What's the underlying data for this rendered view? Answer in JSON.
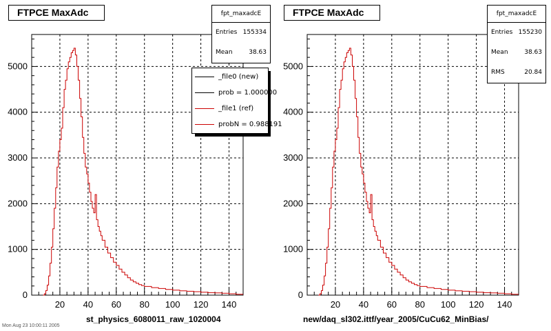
{
  "panels": [
    {
      "title": "FTPCE MaxAdc",
      "stats": {
        "name": "fpt_maxadcE",
        "rows": [
          {
            "label": "Entries",
            "value": "155334"
          },
          {
            "label": "Mean",
            "value": "38.63"
          }
        ]
      },
      "legend": [
        {
          "label": "_file0 (new)",
          "color": "#000000"
        },
        {
          "label": "prob = 1.000000",
          "color": "#000000"
        },
        {
          "label": "_file1 (ref)",
          "color": "#cc0000"
        },
        {
          "label": "probN = 0.988191",
          "color": "#cc0000"
        }
      ],
      "xcaption": "st_physics_6080011_raw_1020004",
      "footnote": "Mon Aug 23 10:00:11 2005"
    },
    {
      "title": "FTPCE MaxAdc",
      "stats": {
        "name": "fpt_maxadcE",
        "rows": [
          {
            "label": "Entries",
            "value": "155230"
          },
          {
            "label": "Mean",
            "value": "38.63"
          },
          {
            "label": "RMS",
            "value": "20.84"
          }
        ]
      },
      "xcaption": "new/daq_sl302.ittf/year_2005/CuCu62_MinBias/"
    }
  ],
  "chart_data": [
    {
      "type": "histogram",
      "title": "FTPCE MaxAdc",
      "xlabel": "st_physics_6080011_raw_1020004",
      "xlim": [
        0,
        150
      ],
      "ylim": [
        0,
        5700
      ],
      "xticks": [
        20,
        40,
        60,
        80,
        100,
        120,
        140
      ],
      "yticks": [
        0,
        1000,
        2000,
        3000,
        4000,
        5000
      ],
      "grid": true,
      "series": [
        {
          "name": "_file0 (new)",
          "color": "#000000"
        },
        {
          "name": "_file1 (ref)",
          "color": "#cc0000"
        }
      ],
      "x": [
        8,
        9,
        10,
        11,
        12,
        13,
        14,
        15,
        16,
        17,
        18,
        19,
        20,
        21,
        22,
        23,
        24,
        25,
        26,
        27,
        28,
        29,
        30,
        31,
        32,
        33,
        34,
        35,
        36,
        37,
        38,
        39,
        40,
        41,
        42,
        43,
        44,
        45,
        46,
        47,
        48,
        49,
        50,
        52,
        54,
        56,
        58,
        60,
        62,
        64,
        66,
        68,
        70,
        72,
        74,
        76,
        78,
        80,
        85,
        90,
        95,
        100,
        105,
        110,
        115,
        120,
        125,
        130,
        135,
        140,
        145,
        150
      ],
      "values": [
        0,
        30,
        100,
        220,
        420,
        700,
        1050,
        1450,
        1900,
        2350,
        2800,
        3150,
        3400,
        3650,
        4100,
        4500,
        4700,
        4950,
        5100,
        5200,
        5300,
        5350,
        5400,
        5250,
        5000,
        4700,
        4300,
        3900,
        3450,
        3100,
        2800,
        2650,
        2450,
        2250,
        2050,
        1900,
        1800,
        2200,
        1650,
        1500,
        1400,
        1300,
        1200,
        1050,
        920,
        820,
        720,
        650,
        570,
        500,
        440,
        380,
        330,
        290,
        260,
        230,
        210,
        190,
        165,
        145,
        125,
        110,
        95,
        85,
        75,
        65,
        55,
        50,
        40,
        30,
        20,
        10
      ]
    },
    {
      "type": "histogram",
      "title": "FTPCE MaxAdc",
      "xlabel": "new/daq_sl302.ittf/year_2005/CuCu62_MinBias/",
      "xlim": [
        0,
        150
      ],
      "ylim": [
        0,
        5700
      ],
      "xticks": [
        20,
        40,
        60,
        80,
        100,
        120,
        140
      ],
      "yticks": [
        0,
        1000,
        2000,
        3000,
        4000,
        5000
      ],
      "grid": true,
      "series": [
        {
          "color": "#cc0000"
        }
      ],
      "x": [
        8,
        9,
        10,
        11,
        12,
        13,
        14,
        15,
        16,
        17,
        18,
        19,
        20,
        21,
        22,
        23,
        24,
        25,
        26,
        27,
        28,
        29,
        30,
        31,
        32,
        33,
        34,
        35,
        36,
        37,
        38,
        39,
        40,
        41,
        42,
        43,
        44,
        45,
        46,
        47,
        48,
        49,
        50,
        52,
        54,
        56,
        58,
        60,
        62,
        64,
        66,
        68,
        70,
        72,
        74,
        76,
        78,
        80,
        85,
        90,
        95,
        100,
        105,
        110,
        115,
        120,
        125,
        130,
        135,
        140,
        145,
        150
      ],
      "values": [
        0,
        30,
        100,
        220,
        420,
        700,
        1050,
        1450,
        1900,
        2350,
        2800,
        3150,
        3400,
        3650,
        4100,
        4500,
        4700,
        4950,
        5100,
        5200,
        5300,
        5350,
        5400,
        5250,
        5000,
        4700,
        4300,
        3900,
        3450,
        3100,
        2800,
        2650,
        2450,
        2250,
        2050,
        1900,
        1800,
        2200,
        1650,
        1500,
        1400,
        1300,
        1200,
        1050,
        920,
        820,
        720,
        650,
        570,
        500,
        440,
        380,
        330,
        290,
        260,
        230,
        210,
        190,
        165,
        145,
        125,
        110,
        95,
        85,
        75,
        65,
        55,
        50,
        40,
        30,
        20,
        10
      ]
    }
  ]
}
